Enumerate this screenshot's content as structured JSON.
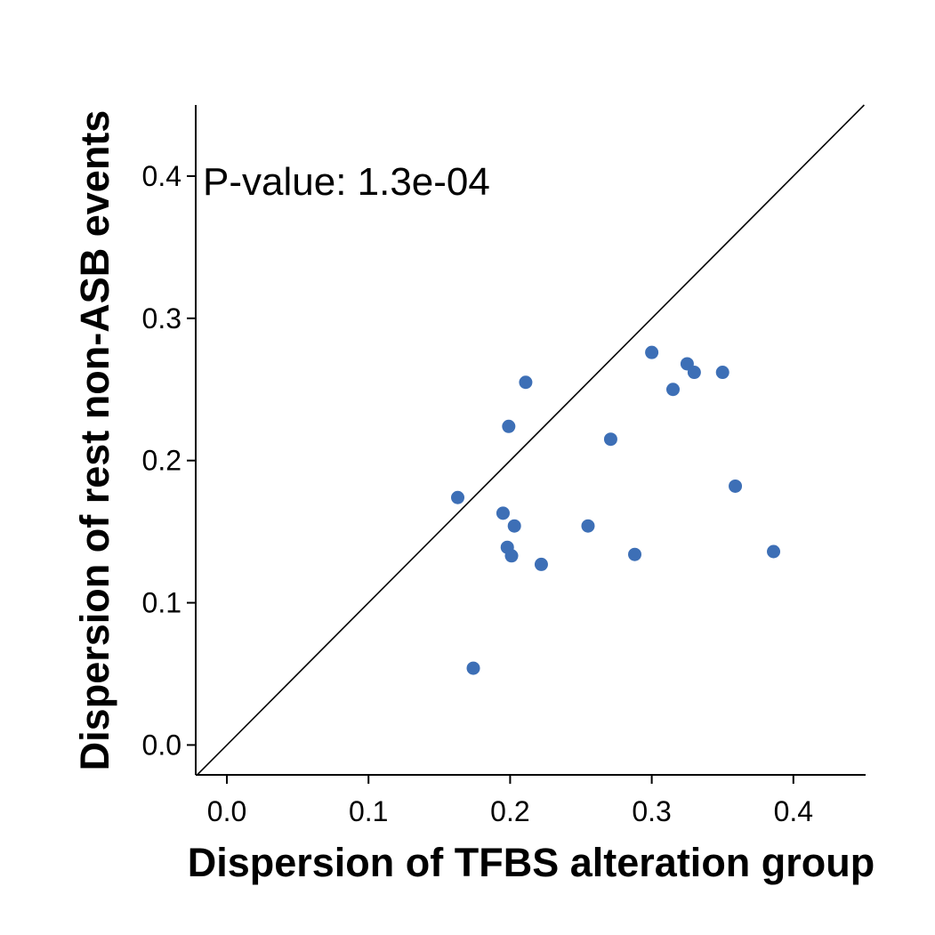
{
  "chart_data": {
    "type": "scatter",
    "title": "",
    "xlabel": "Dispersion of TFBS alteration group",
    "ylabel": "Dispersion of rest non-ASB events",
    "xlim": [
      -0.022,
      0.451
    ],
    "ylim": [
      -0.021,
      0.45
    ],
    "xticks": [
      0.0,
      0.1,
      0.2,
      0.3,
      0.4
    ],
    "yticks": [
      0.0,
      0.1,
      0.2,
      0.3,
      0.4
    ],
    "x_tick_labels": [
      "0.0",
      "0.1",
      "0.2",
      "0.3",
      "0.4"
    ],
    "y_tick_labels": [
      "0.0",
      "0.1",
      "0.2",
      "0.3",
      "0.4"
    ],
    "grid": false,
    "legend": "none",
    "reference_line": "y = x",
    "annotation": "P-value: 1.3e-04",
    "point_color": "#3d6fb6",
    "points": [
      {
        "x": 0.163,
        "y": 0.174
      },
      {
        "x": 0.174,
        "y": 0.054
      },
      {
        "x": 0.195,
        "y": 0.163
      },
      {
        "x": 0.198,
        "y": 0.139
      },
      {
        "x": 0.199,
        "y": 0.224
      },
      {
        "x": 0.201,
        "y": 0.133
      },
      {
        "x": 0.203,
        "y": 0.154
      },
      {
        "x": 0.211,
        "y": 0.255
      },
      {
        "x": 0.222,
        "y": 0.127
      },
      {
        "x": 0.255,
        "y": 0.154
      },
      {
        "x": 0.271,
        "y": 0.215
      },
      {
        "x": 0.288,
        "y": 0.134
      },
      {
        "x": 0.3,
        "y": 0.276
      },
      {
        "x": 0.315,
        "y": 0.25
      },
      {
        "x": 0.325,
        "y": 0.268
      },
      {
        "x": 0.33,
        "y": 0.262
      },
      {
        "x": 0.35,
        "y": 0.262
      },
      {
        "x": 0.359,
        "y": 0.182
      },
      {
        "x": 0.386,
        "y": 0.136
      }
    ]
  }
}
